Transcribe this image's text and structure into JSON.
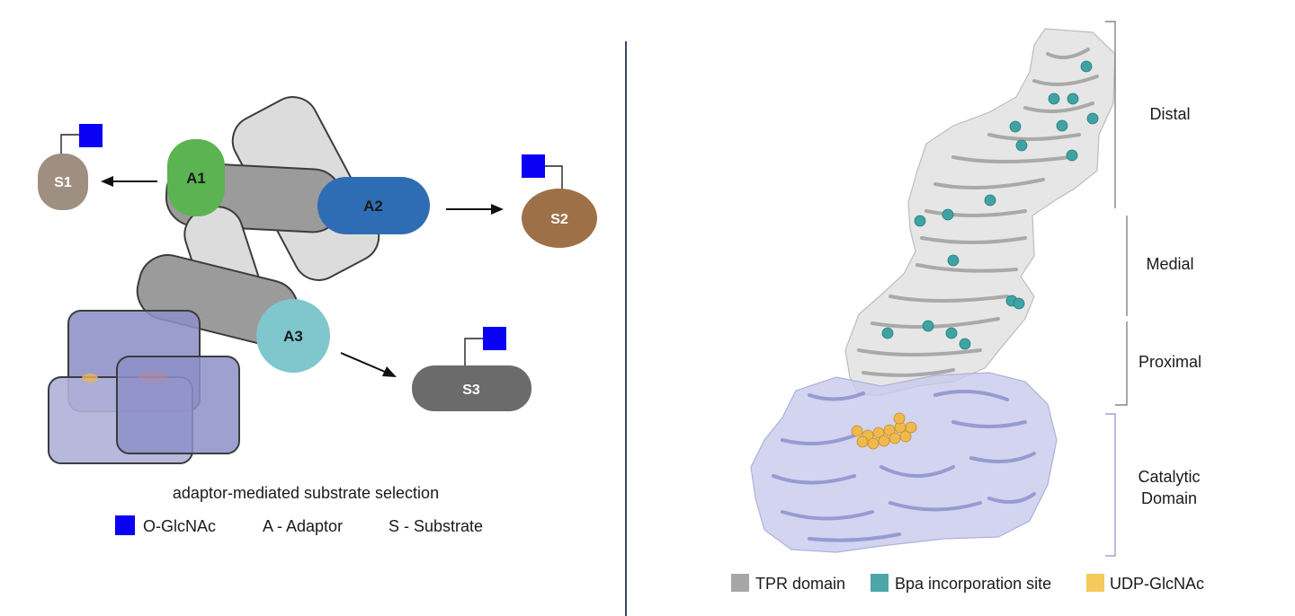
{
  "left_panel": {
    "substrates": {
      "s1": "S1",
      "s2": "S2",
      "s3": "S3"
    },
    "adaptors": {
      "a1": "A1",
      "a2": "A2",
      "a3": "A3"
    },
    "caption": "adaptor-mediated substrate selection",
    "legend": {
      "glcnac": "O-GlcNAc",
      "adaptor": "A - Adaptor",
      "substrate": "S - Substrate"
    }
  },
  "right_panel": {
    "regions": {
      "distal": "Distal",
      "medial": "Medial",
      "proximal": "Proximal",
      "catalytic_line1": "Catalytic",
      "catalytic_line2": "Domain"
    },
    "legend": {
      "tpr": "TPR domain",
      "bpa": "Bpa incorporation site",
      "udp": "UDP-GlcNAc"
    }
  },
  "colors": {
    "glcnac": "#0a00f5",
    "a1": "#5cb352",
    "a2": "#2e6db4",
    "a3": "#7fc7cd",
    "s1": "#9e8f80",
    "s2": "#9e7048",
    "s3": "#6b6b6b",
    "tpr": "#a6a6a6",
    "bpa": "#4da6a6",
    "udp": "#f5c95c",
    "catalytic": "#a9add8",
    "divider": "#3a4566",
    "bracket_region": "#6e6e6e",
    "bracket_catalytic": "#8c92c8"
  }
}
